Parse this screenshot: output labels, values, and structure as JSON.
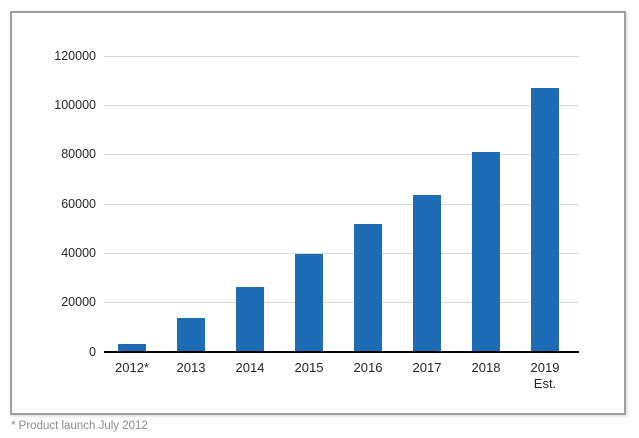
{
  "chart_data": {
    "type": "bar",
    "title": "",
    "xlabel": "",
    "ylabel": "",
    "categories": [
      "2012*",
      "2013",
      "2014",
      "2015",
      "2016",
      "2017",
      "2018",
      "2019\nEst."
    ],
    "values": [
      3000,
      13500,
      26000,
      39500,
      51500,
      63500,
      81000,
      107000
    ],
    "ylim": [
      0,
      120000
    ],
    "yticks": [
      0,
      20000,
      40000,
      60000,
      80000,
      100000,
      120000
    ],
    "grid": true,
    "legend": false,
    "bar_color": "#1e6cb5",
    "gridline_color": "#d9d9d9",
    "axis_line_color": "#000000",
    "tick_label_color": "#262626"
  },
  "footnote": {
    "text": "* Product launch July 2012",
    "color": "#8c8c8c"
  }
}
